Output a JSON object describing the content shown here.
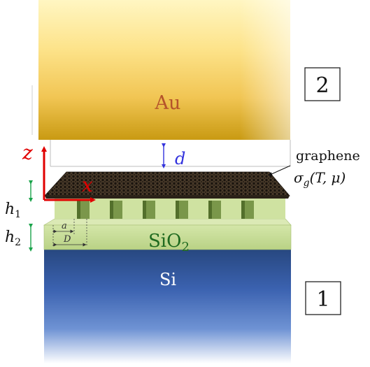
{
  "blocks": {
    "gold_label": "Au",
    "silicon_label": "Si",
    "oxide_label_main": "SiO",
    "oxide_label_sub": "2"
  },
  "panels": {
    "top_number": "2",
    "bottom_number": "1"
  },
  "axes": {
    "x": "x",
    "z": "z"
  },
  "labels": {
    "gap": "d",
    "graphene_name": "graphene",
    "sigma": "σ",
    "sigma_sub": "g",
    "sigma_args": "(T, μ)",
    "h1_main": "h",
    "h1_sub": "1",
    "h2_main": "h",
    "h2_sub": "2",
    "a": "a",
    "D": "D"
  },
  "colors": {
    "gold_light": "#fde78a",
    "gold_dark": "#c79a12",
    "silicon_top": "#2a4c8c",
    "silicon_bottom": "#ffffff",
    "oxide": "#c7dc9a",
    "oxide_dark": "#9fbd6a",
    "axis_red": "#e00000",
    "arrow_blue": "#3333dd",
    "arrow_green": "#19a34a",
    "oxide_text": "#1f6a1f",
    "gold_text": "#b5542b"
  }
}
